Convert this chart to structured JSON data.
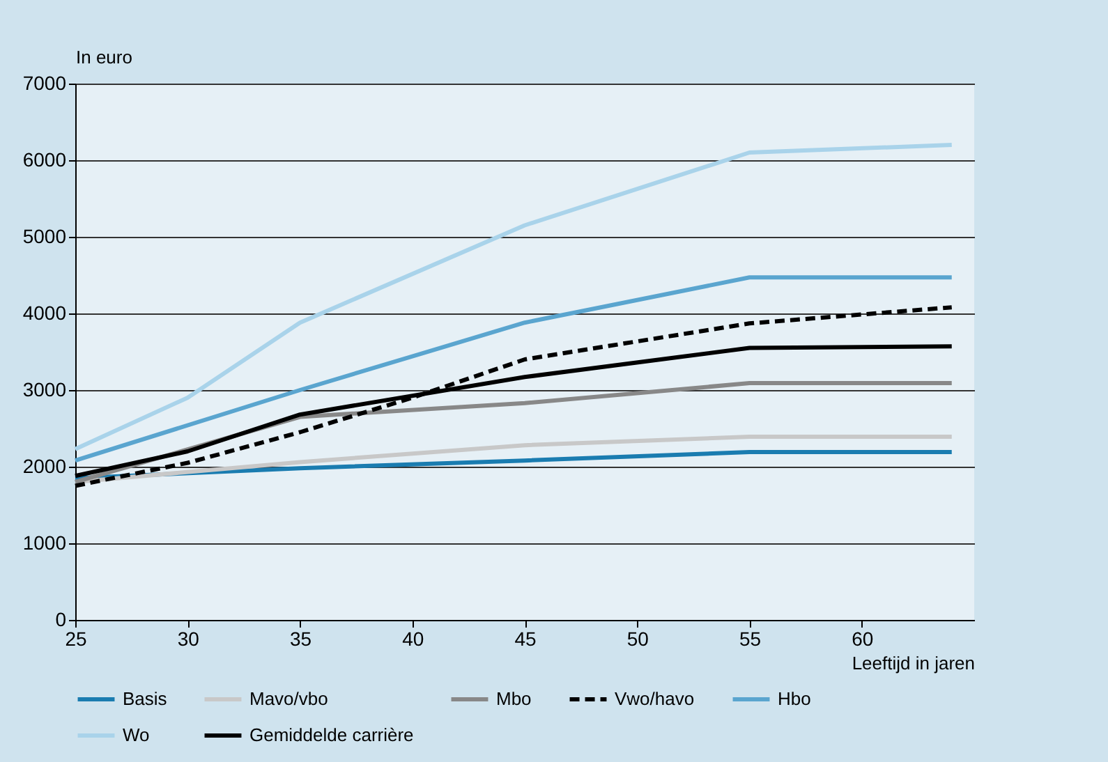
{
  "chart_data": {
    "type": "line",
    "xlabel": "Leeftijd in jaren",
    "ylabel": "In euro",
    "xlim": [
      25,
      65
    ],
    "xticks": [
      25,
      30,
      35,
      40,
      45,
      50,
      55,
      60
    ],
    "ylim": [
      0,
      7000
    ],
    "yticks": [
      0,
      1000,
      2000,
      3000,
      4000,
      5000,
      6000,
      7000
    ],
    "grid": "y",
    "legend": "bottom",
    "series": [
      {
        "name": "Basis",
        "color": "#1a7cb0",
        "x": [
          25,
          35,
          45,
          55,
          64
        ],
        "values": [
          1850,
          1980,
          2080,
          2190,
          2190
        ]
      },
      {
        "name": "Mavo/vbo",
        "color": "#c8c8c8",
        "x": [
          25,
          35,
          45,
          55,
          64
        ],
        "values": [
          1800,
          2060,
          2280,
          2390,
          2390
        ]
      },
      {
        "name": "Mbo",
        "color": "#888888",
        "x": [
          25,
          35,
          45,
          55,
          64
        ],
        "values": [
          1800,
          2650,
          2830,
          3090,
          3090
        ]
      },
      {
        "name": "Vwo/havo",
        "color": "#000000",
        "line_style": "dashed",
        "x": [
          25,
          30,
          35,
          40,
          45,
          55,
          64
        ],
        "values": [
          1750,
          2050,
          2450,
          2900,
          3400,
          3870,
          4080
        ]
      },
      {
        "name": "Hbo",
        "color": "#5aa5cf",
        "x": [
          25,
          35,
          45,
          55,
          64
        ],
        "values": [
          2080,
          3000,
          3880,
          4470,
          4470
        ]
      },
      {
        "name": "Wo",
        "color": "#a9d3ea",
        "x": [
          25,
          30,
          35,
          45,
          55,
          64
        ],
        "values": [
          2230,
          2900,
          3880,
          5150,
          6100,
          6200
        ]
      },
      {
        "name": "Gemiddelde carrière",
        "color": "#000000",
        "x": [
          25,
          30,
          35,
          45,
          55,
          64
        ],
        "values": [
          1880,
          2200,
          2680,
          3170,
          3550,
          3570
        ]
      }
    ]
  }
}
